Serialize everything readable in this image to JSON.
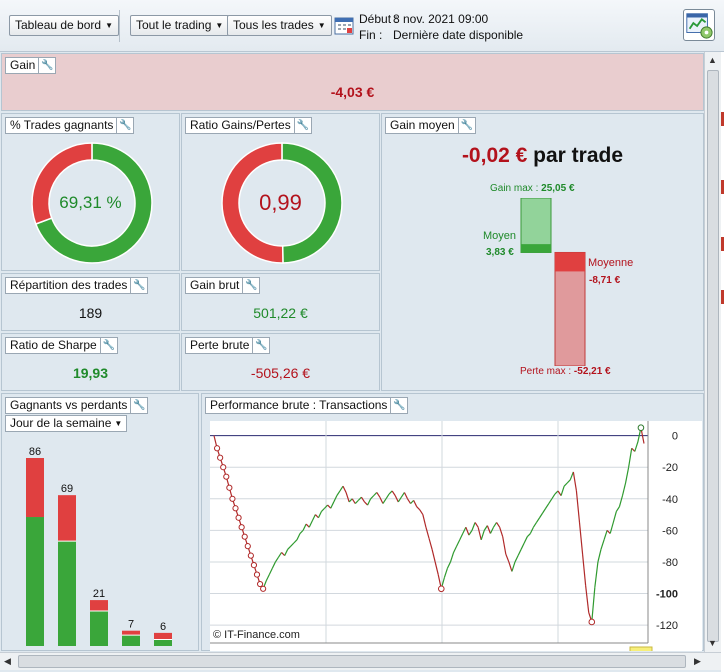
{
  "toolbar": {
    "dashboard_label": "Tableau de bord",
    "trading_label": "Tout le trading",
    "trades_label": "Tous les trades",
    "start_label": "Début :",
    "start_value": "8 nov. 2021 09:00",
    "end_label": "Fin :",
    "end_value": "Dernière date disponible"
  },
  "gain": {
    "title": "Gain",
    "value": "-4,03 €"
  },
  "win_pct": {
    "title": "% Trades gagnants",
    "value": "69,31 %",
    "fraction": 0.6931
  },
  "ratio": {
    "title": "Ratio Gains/Pertes",
    "value": "0,99",
    "fraction": 0.4975
  },
  "avg_gain": {
    "title": "Gain moyen",
    "value": "-0,02 €",
    "suffix": "par trade",
    "max_gain_label": "Gain max :",
    "max_gain_value": "25,05 €",
    "avg_win_label": "Moyen",
    "avg_win_value": "3,83 €",
    "avg_loss_label": "Moyenne",
    "avg_loss_value": "-8,71 €",
    "max_loss_label": "Perte max :",
    "max_loss_value": "-52,21 €",
    "max_gain": 25.05,
    "avg_win": 3.83,
    "avg_loss": -8.71,
    "max_loss": -52.21
  },
  "distribution": {
    "title": "Répartition des trades",
    "value": "189"
  },
  "gross_gain": {
    "title": "Gain brut",
    "value": "501,22 €"
  },
  "sharpe": {
    "title": "Ratio de Sharpe",
    "value": "19,93"
  },
  "gross_loss": {
    "title": "Perte brute",
    "value": "-505,26 €"
  },
  "winners": {
    "title": "Gagnants vs perdants",
    "dropdown": "Jour de la semaine",
    "bars": [
      {
        "total_label": "86",
        "total": 86,
        "wins": 59
      },
      {
        "total_label": "69",
        "total": 69,
        "wins": 48
      },
      {
        "total_label": "21",
        "total": 21,
        "wins": 16
      },
      {
        "total_label": "7",
        "total": 7,
        "wins": 5
      },
      {
        "total_label": "6",
        "total": 6,
        "wins": 3
      }
    ]
  },
  "performance": {
    "title": "Performance brute : Transactions",
    "credit": "© IT-Finance.com",
    "y_ticks": [
      "0",
      "-20",
      "-40",
      "-60",
      "-80",
      "-100",
      "-120"
    ],
    "y_tick_values": [
      0,
      -20,
      -40,
      -60,
      -80,
      -100,
      -120
    ],
    "ylim": [
      -125,
      8
    ],
    "series": [
      0,
      -8,
      -14,
      -20,
      -26,
      -33,
      -40,
      -46,
      -52,
      -58,
      -64,
      -70,
      -76,
      -82,
      -88,
      -94,
      -97,
      -92,
      -88,
      -84,
      -80,
      -77,
      -74,
      -76,
      -72,
      -70,
      -68,
      -66,
      -62,
      -60,
      -56,
      -58,
      -54,
      -50,
      -52,
      -48,
      -46,
      -44,
      -46,
      -42,
      -38,
      -35,
      -32,
      -36,
      -42,
      -40,
      -43,
      -41,
      -39,
      -42,
      -44,
      -40,
      -38,
      -36,
      -39,
      -43,
      -40,
      -37,
      -35,
      -38,
      -42,
      -39,
      -36,
      -40,
      -43,
      -41,
      -45,
      -47,
      -50,
      -58,
      -65,
      -72,
      -80,
      -88,
      -97,
      -90,
      -84,
      -80,
      -74,
      -70,
      -66,
      -62,
      -58,
      -63,
      -60,
      -55,
      -58,
      -66,
      -60,
      -57,
      -62,
      -58,
      -55,
      -58,
      -64,
      -75,
      -80,
      -86,
      -80,
      -76,
      -72,
      -68,
      -64,
      -62,
      -58,
      -55,
      -52,
      -49,
      -46,
      -43,
      -40,
      -37,
      -35,
      -38,
      -32,
      -30,
      -28,
      -23,
      -35,
      -55,
      -75,
      -95,
      -112,
      -118,
      -96,
      -80,
      -72,
      -66,
      -60,
      -62,
      -55,
      -48,
      -45,
      -38,
      -30,
      -20,
      -8,
      -10,
      -4,
      5,
      -5
    ]
  }
}
